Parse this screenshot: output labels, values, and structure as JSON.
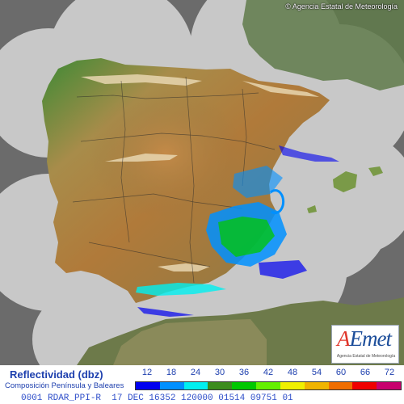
{
  "map": {
    "copyright": "© Agencia Estatal de Meteorología",
    "logo_text": "AEmet",
    "logo_subtext": "Agencia Estatal de Meteorología"
  },
  "legend": {
    "title": "Reflectividad (dbz)",
    "subtitle": "Composición Península y Baleares",
    "scale": [
      {
        "label": "12",
        "color": "#0000f0"
      },
      {
        "label": "18",
        "color": "#0090ff"
      },
      {
        "label": "24",
        "color": "#00f0f0"
      },
      {
        "label": "30",
        "color": "#3c8c1e"
      },
      {
        "label": "36",
        "color": "#00c800"
      },
      {
        "label": "42",
        "color": "#64f000"
      },
      {
        "label": "48",
        "color": "#f0f000"
      },
      {
        "label": "54",
        "color": "#f0b400"
      },
      {
        "label": "60",
        "color": "#f06e00"
      },
      {
        "label": "66",
        "color": "#f00000"
      },
      {
        "label": "72",
        "color": "#c8006e"
      }
    ]
  },
  "footer": {
    "text": "0001 RDAR_PPI-R  17 DEC 16352 120000 01514 09751 01"
  }
}
